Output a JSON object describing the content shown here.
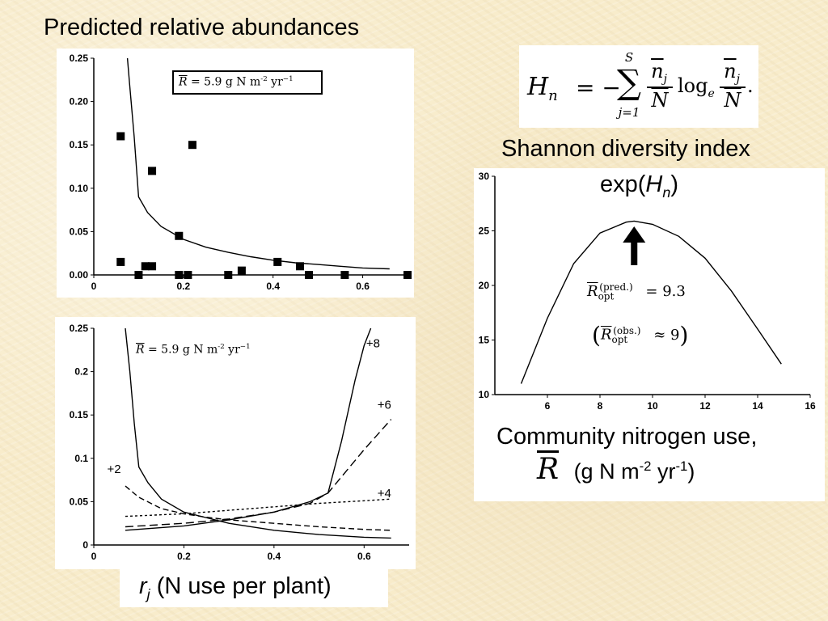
{
  "slide": {
    "title": "Predicted relative abundances",
    "shannon_label": "Shannon diversity index",
    "exp_pre": "exp(",
    "exp_var": "H",
    "exp_sub": "n",
    "exp_post": ")",
    "x_caption_var": "r",
    "x_caption_sub": "j",
    "x_caption_rest": " (N use per plant)",
    "community_label": "Community nitrogen use,",
    "community_var": "R",
    "community_units_pre": "(g N m",
    "community_units_exp1": "-2",
    "community_units_mid": " yr",
    "community_units_exp2": "-1",
    "community_units_post": ")"
  },
  "formula": {
    "lhs": "H",
    "lhs_sub": "n",
    "eq": "= −",
    "sum_top": "S",
    "sum_sym": "∑",
    "sum_bottom": "j=1",
    "frac_num": "n",
    "frac_num_sub": "j",
    "frac_den": "N",
    "log": "log",
    "log_sub": "e",
    "end": "."
  },
  "colors": {
    "background": "#f8eccb",
    "panel": "#ffffff",
    "ink": "#000000"
  },
  "chart_data": [
    {
      "type": "scatter",
      "xlim": [
        0,
        0.7
      ],
      "ylim": [
        0,
        0.25
      ],
      "xticks": [
        "0",
        "0.2",
        "0.4",
        "0.6"
      ],
      "yticks": [
        "0.00",
        "0.05",
        "0.10",
        "0.15",
        "0.20",
        "0.25"
      ],
      "annotation": {
        "sym": "R",
        "text": " = 5.9  g  N  m",
        "exp1": "-2",
        "mid": " yr",
        "exp2": "−1"
      },
      "points": [
        [
          0.06,
          0.16
        ],
        [
          0.13,
          0.12
        ],
        [
          0.22,
          0.15
        ],
        [
          0.06,
          0.015
        ],
        [
          0.115,
          0.01
        ],
        [
          0.13,
          0.01
        ],
        [
          0.19,
          0.045
        ],
        [
          0.1,
          0.0
        ],
        [
          0.19,
          0.0
        ],
        [
          0.21,
          0.0
        ],
        [
          0.3,
          0.0
        ],
        [
          0.33,
          0.005
        ],
        [
          0.41,
          0.015
        ],
        [
          0.46,
          0.01
        ],
        [
          0.48,
          0.0
        ],
        [
          0.56,
          0.0
        ],
        [
          0.7,
          0.0
        ]
      ],
      "curve": [
        [
          0.075,
          0.25
        ],
        [
          0.08,
          0.22
        ],
        [
          0.09,
          0.16
        ],
        [
          0.1,
          0.09
        ],
        [
          0.12,
          0.072
        ],
        [
          0.15,
          0.056
        ],
        [
          0.2,
          0.041
        ],
        [
          0.25,
          0.032
        ],
        [
          0.3,
          0.026
        ],
        [
          0.35,
          0.021
        ],
        [
          0.4,
          0.017
        ],
        [
          0.45,
          0.014
        ],
        [
          0.5,
          0.012
        ],
        [
          0.55,
          0.01
        ],
        [
          0.6,
          0.008
        ],
        [
          0.66,
          0.007
        ]
      ]
    },
    {
      "type": "line",
      "xlim": [
        0,
        0.7
      ],
      "ylim": [
        0,
        0.25
      ],
      "xticks": [
        "0",
        "0.2",
        "0.4",
        "0.6"
      ],
      "yticks": [
        "0",
        "0.05",
        "0.1",
        "0.15",
        "0.2",
        "0.25"
      ],
      "annotation": {
        "sym": "R",
        "text": " = 5.9  g  N  m",
        "exp1": "-2",
        "mid": " yr",
        "exp2": "−1"
      },
      "series": [
        {
          "name": "+8",
          "dash": "solid",
          "label_at": [
            0.62,
            0.228
          ],
          "values": [
            [
              0.07,
              0.017
            ],
            [
              0.2,
              0.022
            ],
            [
              0.3,
              0.029
            ],
            [
              0.4,
              0.038
            ],
            [
              0.48,
              0.05
            ],
            [
              0.52,
              0.06
            ],
            [
              0.55,
              0.12
            ],
            [
              0.58,
              0.19
            ],
            [
              0.6,
              0.23
            ],
            [
              0.615,
              0.25
            ]
          ]
        },
        {
          "name": "+6",
          "dash": "long",
          "label_at": [
            0.645,
            0.157
          ],
          "values": [
            [
              0.07,
              0.021
            ],
            [
              0.2,
              0.025
            ],
            [
              0.3,
              0.03
            ],
            [
              0.4,
              0.038
            ],
            [
              0.48,
              0.048
            ],
            [
              0.52,
              0.06
            ],
            [
              0.6,
              0.11
            ],
            [
              0.66,
              0.145
            ]
          ]
        },
        {
          "name": "+4",
          "dash": "short",
          "label_at": [
            0.645,
            0.055
          ],
          "values": [
            [
              0.07,
              0.033
            ],
            [
              0.2,
              0.036
            ],
            [
              0.3,
              0.04
            ],
            [
              0.4,
              0.044
            ],
            [
              0.5,
              0.048
            ],
            [
              0.6,
              0.051
            ],
            [
              0.66,
              0.053
            ]
          ]
        },
        {
          "name": "+2",
          "dash": "medium",
          "label_at": [
            0.045,
            0.083
          ],
          "values": [
            [
              0.07,
              0.068
            ],
            [
              0.1,
              0.055
            ],
            [
              0.15,
              0.042
            ],
            [
              0.2,
              0.036
            ],
            [
              0.25,
              0.032
            ],
            [
              0.3,
              0.029
            ],
            [
              0.4,
              0.025
            ],
            [
              0.5,
              0.021
            ],
            [
              0.6,
              0.018
            ],
            [
              0.66,
              0.017
            ]
          ]
        },
        {
          "name": "",
          "dash": "solid",
          "values": [
            [
              0.07,
              0.25
            ],
            [
              0.08,
              0.2
            ],
            [
              0.09,
              0.14
            ],
            [
              0.1,
              0.09
            ],
            [
              0.12,
              0.072
            ],
            [
              0.15,
              0.053
            ],
            [
              0.2,
              0.038
            ],
            [
              0.3,
              0.025
            ],
            [
              0.4,
              0.017
            ],
            [
              0.5,
              0.012
            ],
            [
              0.6,
              0.009
            ],
            [
              0.66,
              0.008
            ]
          ]
        }
      ]
    },
    {
      "type": "line",
      "xlim": [
        4,
        16
      ],
      "ylim": [
        10,
        30
      ],
      "xticks": [
        "6",
        "8",
        "10",
        "12",
        "14",
        "16"
      ],
      "yticks": [
        "10",
        "15",
        "20",
        "25",
        "30"
      ],
      "values": [
        [
          5,
          11
        ],
        [
          6,
          17
        ],
        [
          7,
          22
        ],
        [
          8,
          24.8
        ],
        [
          9,
          25.8
        ],
        [
          9.3,
          25.9
        ],
        [
          10,
          25.6
        ],
        [
          11,
          24.5
        ],
        [
          12,
          22.5
        ],
        [
          13,
          19.5
        ],
        [
          14,
          16
        ],
        [
          14.9,
          12.8
        ]
      ],
      "arrow_at": 9.3,
      "ropt_pred": {
        "sym": "R",
        "sub": "opt",
        "sup": "(pred.)",
        "rel": "= 9.3"
      },
      "ropt_obs": {
        "open": "(",
        "sym": "R",
        "sub": "opt",
        "sup": "(obs.)",
        "rel": "≈ 9",
        "close": ")"
      }
    }
  ]
}
